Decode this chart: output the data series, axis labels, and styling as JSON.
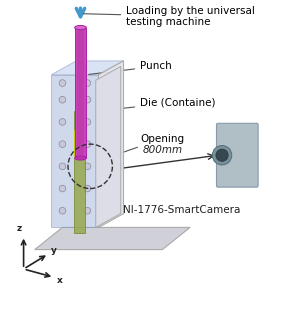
{
  "fig_width": 2.87,
  "fig_height": 3.14,
  "dpi": 100,
  "bg_color": "#ffffff",
  "annotations": {
    "loading": "Loading by the universal\ntesting machine",
    "punch": "Punch",
    "die": "Die (Containe)",
    "opening": "Opening",
    "distance": "800mm",
    "camera": "NI-1776-SmartCamera"
  },
  "arrow_color": "#4499cc",
  "line_color": "#555555",
  "die_color_face": "#aabbdd",
  "die_color_edge": "#8899bb",
  "die_alpha": 0.55,
  "base_color": "#ccccdd",
  "base_edge": "#aaaacc",
  "punch_color": "#cc44bb",
  "punch_edge": "#aa22aa",
  "tube_color": "#99aa55",
  "tube_edge": "#778833",
  "yellow_color": "#dddd00",
  "camera_color": "#aabbcc",
  "camera_edge": "#889aaa",
  "axis_color": "#222222",
  "dashed_circle_color": "#333333",
  "font_size_labels": 7.5,
  "font_size_axis": 6.5,
  "font_size_camera": 7.5
}
